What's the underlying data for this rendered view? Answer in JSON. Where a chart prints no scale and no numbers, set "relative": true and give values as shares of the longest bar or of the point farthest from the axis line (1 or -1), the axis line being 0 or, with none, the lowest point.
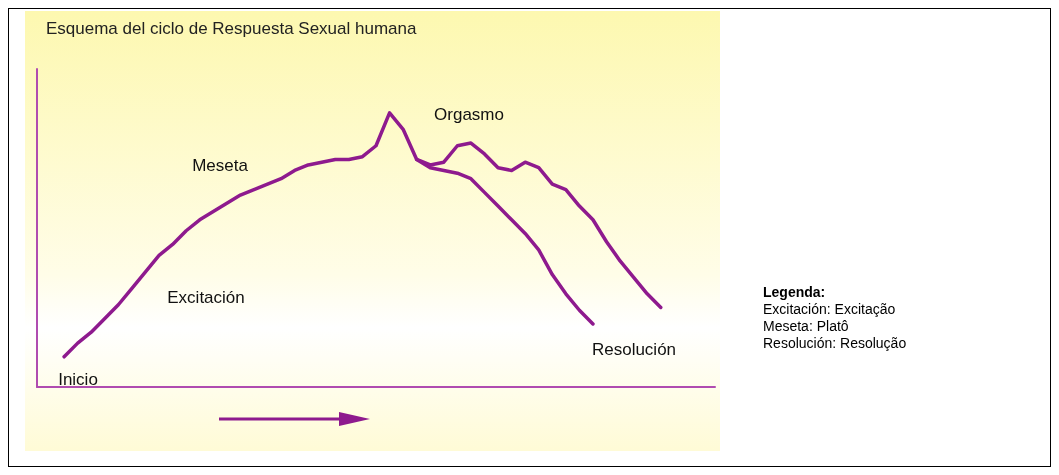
{
  "chart_data": {
    "type": "line",
    "title": "Esquema del ciclo de Respuesta Sexual humana",
    "relative": true,
    "grid": false,
    "marker": "none",
    "line_style": "solid",
    "categories": [
      null,
      null,
      null,
      null,
      null,
      null,
      null,
      null,
      null,
      null,
      null,
      null,
      null,
      null,
      null,
      null,
      null,
      null,
      null,
      null,
      null,
      null,
      null,
      null,
      null,
      null,
      null,
      null,
      null,
      null,
      null,
      null,
      null,
      null,
      null,
      null,
      null,
      null,
      null,
      null,
      null,
      null,
      null,
      null,
      null,
      null,
      null,
      null,
      null,
      null,
      null
    ],
    "series": [
      {
        "color": "#8e1a8e",
        "values": [
          null,
          null,
          0.11,
          0.16,
          0.2,
          0.25,
          0.3,
          0.36,
          0.42,
          0.48,
          0.52,
          0.57,
          0.61,
          0.64,
          0.67,
          0.7,
          0.72,
          0.74,
          0.76,
          0.79,
          0.81,
          0.82,
          0.83,
          0.83,
          0.84,
          0.88,
          1.0,
          0.94,
          0.83,
          0.8,
          0.79,
          0.78,
          0.76,
          0.71,
          0.66,
          0.61,
          0.56,
          0.5,
          0.41,
          0.34,
          0.28,
          0.23,
          null,
          null,
          null,
          null,
          null,
          null,
          null,
          null,
          null
        ]
      },
      {
        "color": "#8e1a8e",
        "values": [
          null,
          null,
          null,
          null,
          null,
          null,
          null,
          null,
          null,
          null,
          null,
          null,
          null,
          null,
          null,
          null,
          null,
          null,
          null,
          null,
          null,
          null,
          null,
          null,
          null,
          null,
          null,
          null,
          0.83,
          0.81,
          0.82,
          0.88,
          0.89,
          0.85,
          0.8,
          0.79,
          0.82,
          0.8,
          0.74,
          0.72,
          0.66,
          0.61,
          0.53,
          0.46,
          0.4,
          0.34,
          0.29,
          null,
          null,
          null,
          null
        ]
      }
    ],
    "annotations": [
      "Inicio",
      "Excitación",
      "Meseta",
      "Orgasmo",
      "Resolución",
      "Legenda:",
      "Excitación: Excitação",
      "Meseta: Platô",
      "Resolución: Resolução"
    ]
  }
}
